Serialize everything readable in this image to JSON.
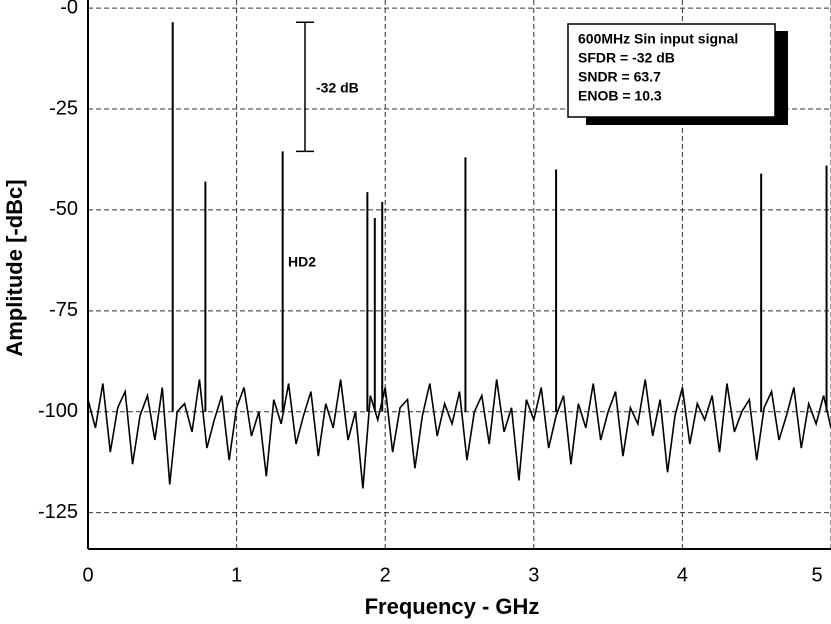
{
  "chart_data": {
    "type": "spectrum",
    "x_label": "Frequency - GHz",
    "y_label": "Amplitude [-dBc]",
    "xlim": [
      0,
      5
    ],
    "ylim": [
      -134,
      2
    ],
    "xticks": [
      0,
      1,
      2,
      3,
      4,
      5
    ],
    "yticks": [
      {
        "value": 0,
        "label": "-0"
      },
      -25,
      -50,
      -75,
      -100,
      -125
    ],
    "grid": true,
    "color": "#000000",
    "noise": {
      "x": [
        0,
        0.05,
        0.1,
        0.15,
        0.2,
        0.25,
        0.3,
        0.35,
        0.4,
        0.45,
        0.5,
        0.55,
        0.6,
        0.65,
        0.7,
        0.75,
        0.8,
        0.85,
        0.9,
        0.95,
        1,
        1.05,
        1.1,
        1.15,
        1.2,
        1.25,
        1.3,
        1.35,
        1.4,
        1.45,
        1.5,
        1.55,
        1.6,
        1.65,
        1.7,
        1.75,
        1.8,
        1.85,
        1.9,
        1.95,
        2,
        2.05,
        2.1,
        2.15,
        2.2,
        2.25,
        2.3,
        2.35,
        2.4,
        2.45,
        2.5,
        2.55,
        2.6,
        2.65,
        2.7,
        2.75,
        2.8,
        2.85,
        2.9,
        2.95,
        3,
        3.05,
        3.1,
        3.15,
        3.2,
        3.25,
        3.3,
        3.35,
        3.4,
        3.45,
        3.5,
        3.55,
        3.6,
        3.65,
        3.7,
        3.75,
        3.8,
        3.85,
        3.9,
        3.95,
        4,
        4.05,
        4.1,
        4.15,
        4.2,
        4.25,
        4.3,
        4.35,
        4.4,
        4.45,
        4.5,
        4.55,
        4.6,
        4.65,
        4.7,
        4.75,
        4.8,
        4.85,
        4.9,
        4.95,
        5
      ],
      "values": [
        -97,
        -104,
        -93,
        -110,
        -99,
        -95,
        -113,
        -101,
        -96,
        -107,
        -94,
        -118,
        -100,
        -98,
        -105,
        -92,
        -109,
        -102,
        -96,
        -112,
        -99,
        -94,
        -106,
        -100,
        -116,
        -97,
        -103,
        -93,
        -108,
        -101,
        -95,
        -111,
        -98,
        -104,
        -92,
        -107,
        -100,
        -119,
        -96,
        -102,
        -94,
        -110,
        -99,
        -97,
        -114,
        -101,
        -93,
        -106,
        -98,
        -103,
        -95,
        -112,
        -100,
        -96,
        -108,
        -92,
        -105,
        -99,
        -117,
        -97,
        -102,
        -94,
        -109,
        -101,
        -96,
        -113,
        -98,
        -104,
        -93,
        -107,
        -100,
        -95,
        -111,
        -99,
        -103,
        -92,
        -106,
        -97,
        -115,
        -101,
        -94,
        -108,
        -98,
        -102,
        -96,
        -110,
        -93,
        -105,
        -100,
        -97,
        -112,
        -99,
        -95,
        -107,
        -101,
        -94,
        -109,
        -98,
        -103,
        -96,
        -104
      ]
    },
    "spurs": {
      "x": [
        0.57,
        0.79,
        1.31,
        1.88,
        1.93,
        1.98,
        2.54,
        3.15,
        4.53,
        4.97
      ],
      "values": [
        -3.5,
        -43,
        -35.5,
        -45.6,
        -52,
        -48,
        -37,
        -40,
        -41,
        -39
      ]
    },
    "annotations": {
      "bracket": "-32 dB",
      "hd2": "HD2"
    },
    "info_box": [
      "600MHz Sin input signal",
      "SFDR = -32 dB",
      "SNDR =  63.7",
      "ENOB =  10.3"
    ]
  }
}
